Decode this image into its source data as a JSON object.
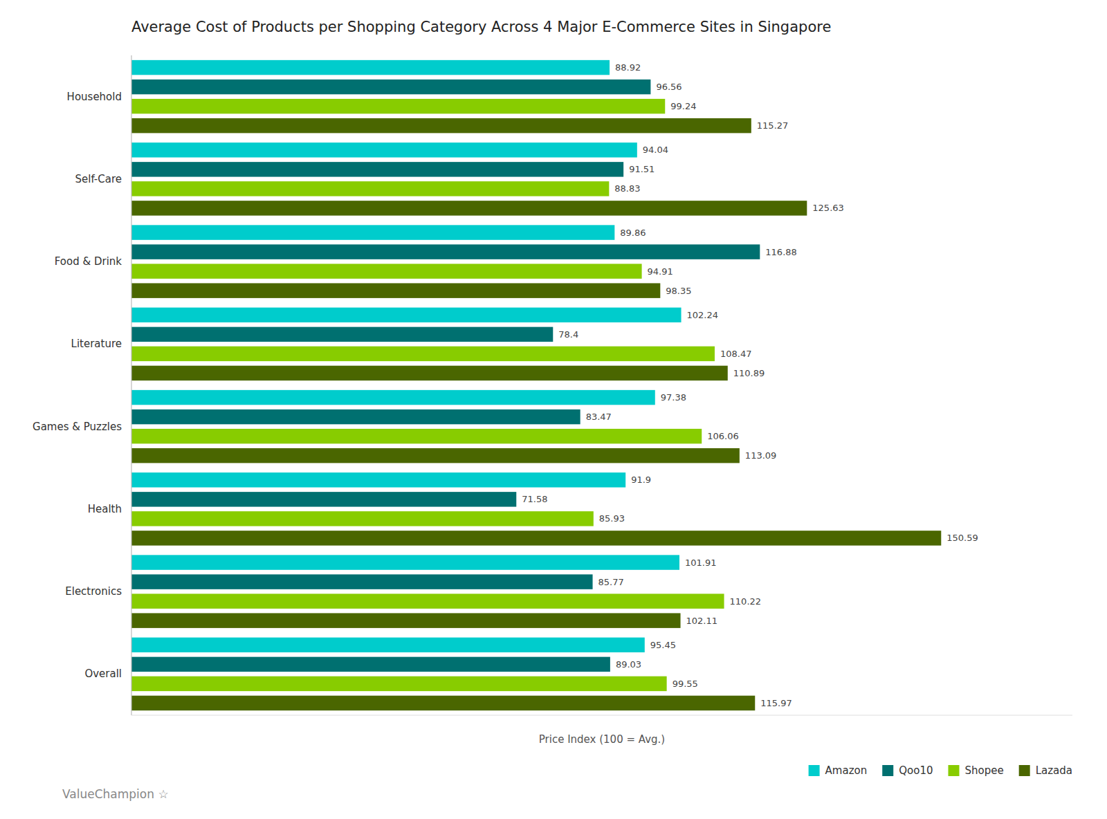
{
  "chart_data": {
    "type": "bar",
    "orientation": "horizontal",
    "title": "Average Cost of Products per Shopping Category Across 4 Major E-Commerce Sites in Singapore",
    "xlabel": "Price Index (100 = Avg.)",
    "categories": [
      "Household",
      "Self-Care",
      "Food & Drink",
      "Literature",
      "Games & Puzzles",
      "Health",
      "Electronics",
      "Overall"
    ],
    "series": [
      {
        "name": "Amazon",
        "color": "#00CCCC",
        "values": [
          88.92,
          94.04,
          89.86,
          102.24,
          97.38,
          91.9,
          101.91,
          95.45
        ]
      },
      {
        "name": "Qoo10",
        "color": "#007070",
        "values": [
          96.56,
          91.51,
          116.88,
          78.4,
          83.47,
          71.58,
          85.77,
          89.03
        ]
      },
      {
        "name": "Shopee",
        "color": "#88CC00",
        "values": [
          99.24,
          88.83,
          94.91,
          108.47,
          106.06,
          85.93,
          110.22,
          99.55
        ]
      },
      {
        "name": "Lazada",
        "color": "#4A6600",
        "values": [
          115.27,
          125.63,
          98.35,
          110.89,
          113.09,
          150.59,
          102.11,
          115.97
        ]
      }
    ],
    "xlim": [
      0,
      175
    ],
    "xticks": [],
    "grid": false,
    "legend": "lower right",
    "data_labels": true,
    "tick_labels": "y",
    "annotations": [
      "ValueChampion ☆"
    ]
  }
}
